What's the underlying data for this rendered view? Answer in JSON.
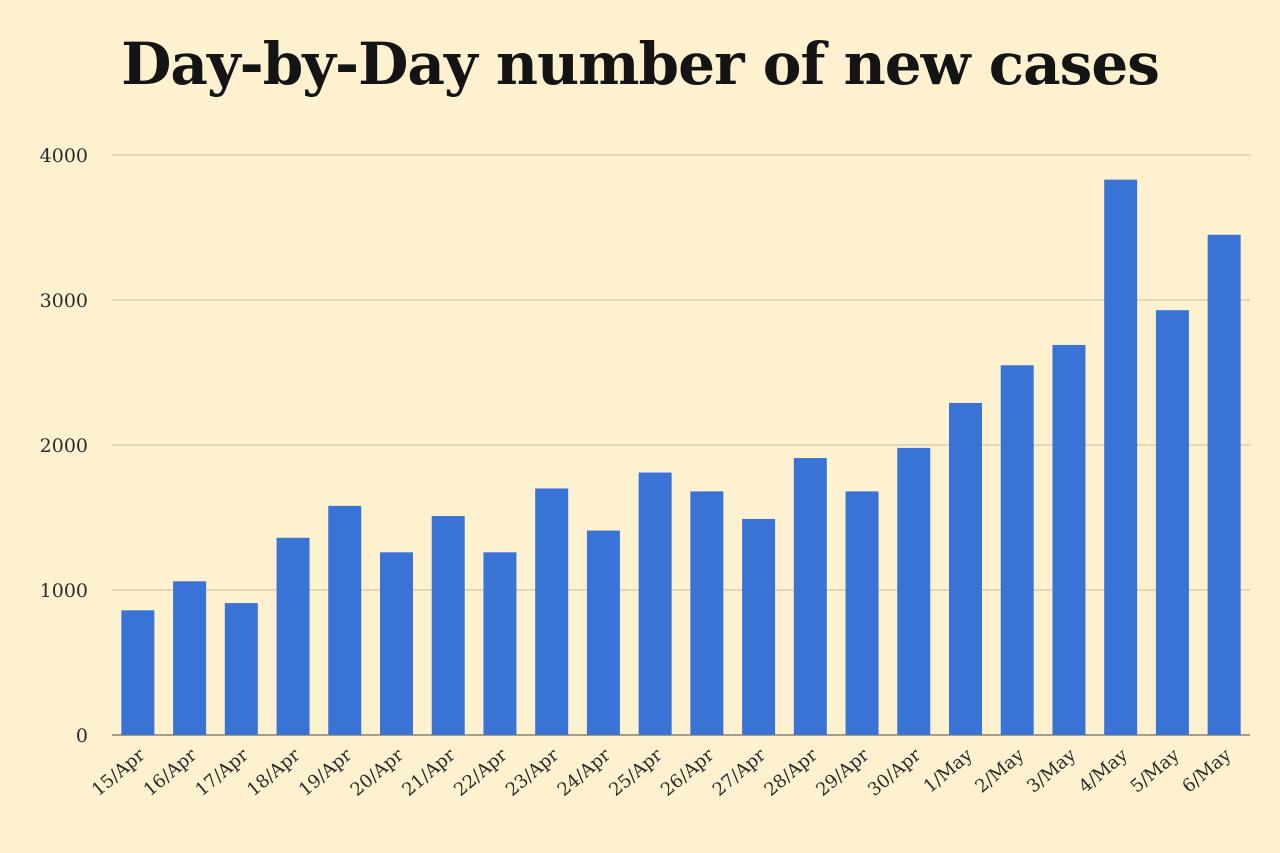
{
  "chart_data": {
    "type": "bar",
    "title": "Day-by-Day number of new cases",
    "xlabel": "",
    "ylabel": "",
    "categories": [
      "15/Apr",
      "16/Apr",
      "17/Apr",
      "18/Apr",
      "19/Apr",
      "20/Apr",
      "21/Apr",
      "22/Apr",
      "23/Apr",
      "24/Apr",
      "25/Apr",
      "26/Apr",
      "27/Apr",
      "28/Apr",
      "29/Apr",
      "30/Apr",
      "1/May",
      "2/May",
      "3/May",
      "4/May",
      "5/May",
      "6/May"
    ],
    "values": [
      860,
      1060,
      910,
      1360,
      1580,
      1260,
      1510,
      1260,
      1700,
      1410,
      1810,
      1680,
      1490,
      1910,
      1680,
      1980,
      2290,
      2550,
      2690,
      3830,
      2930,
      3450
    ],
    "ylim": [
      0,
      4000
    ],
    "yticks": [
      0,
      1000,
      2000,
      3000,
      4000
    ],
    "grid": true,
    "bar_color": "#3a73d6",
    "background": "#fdf1cf"
  }
}
